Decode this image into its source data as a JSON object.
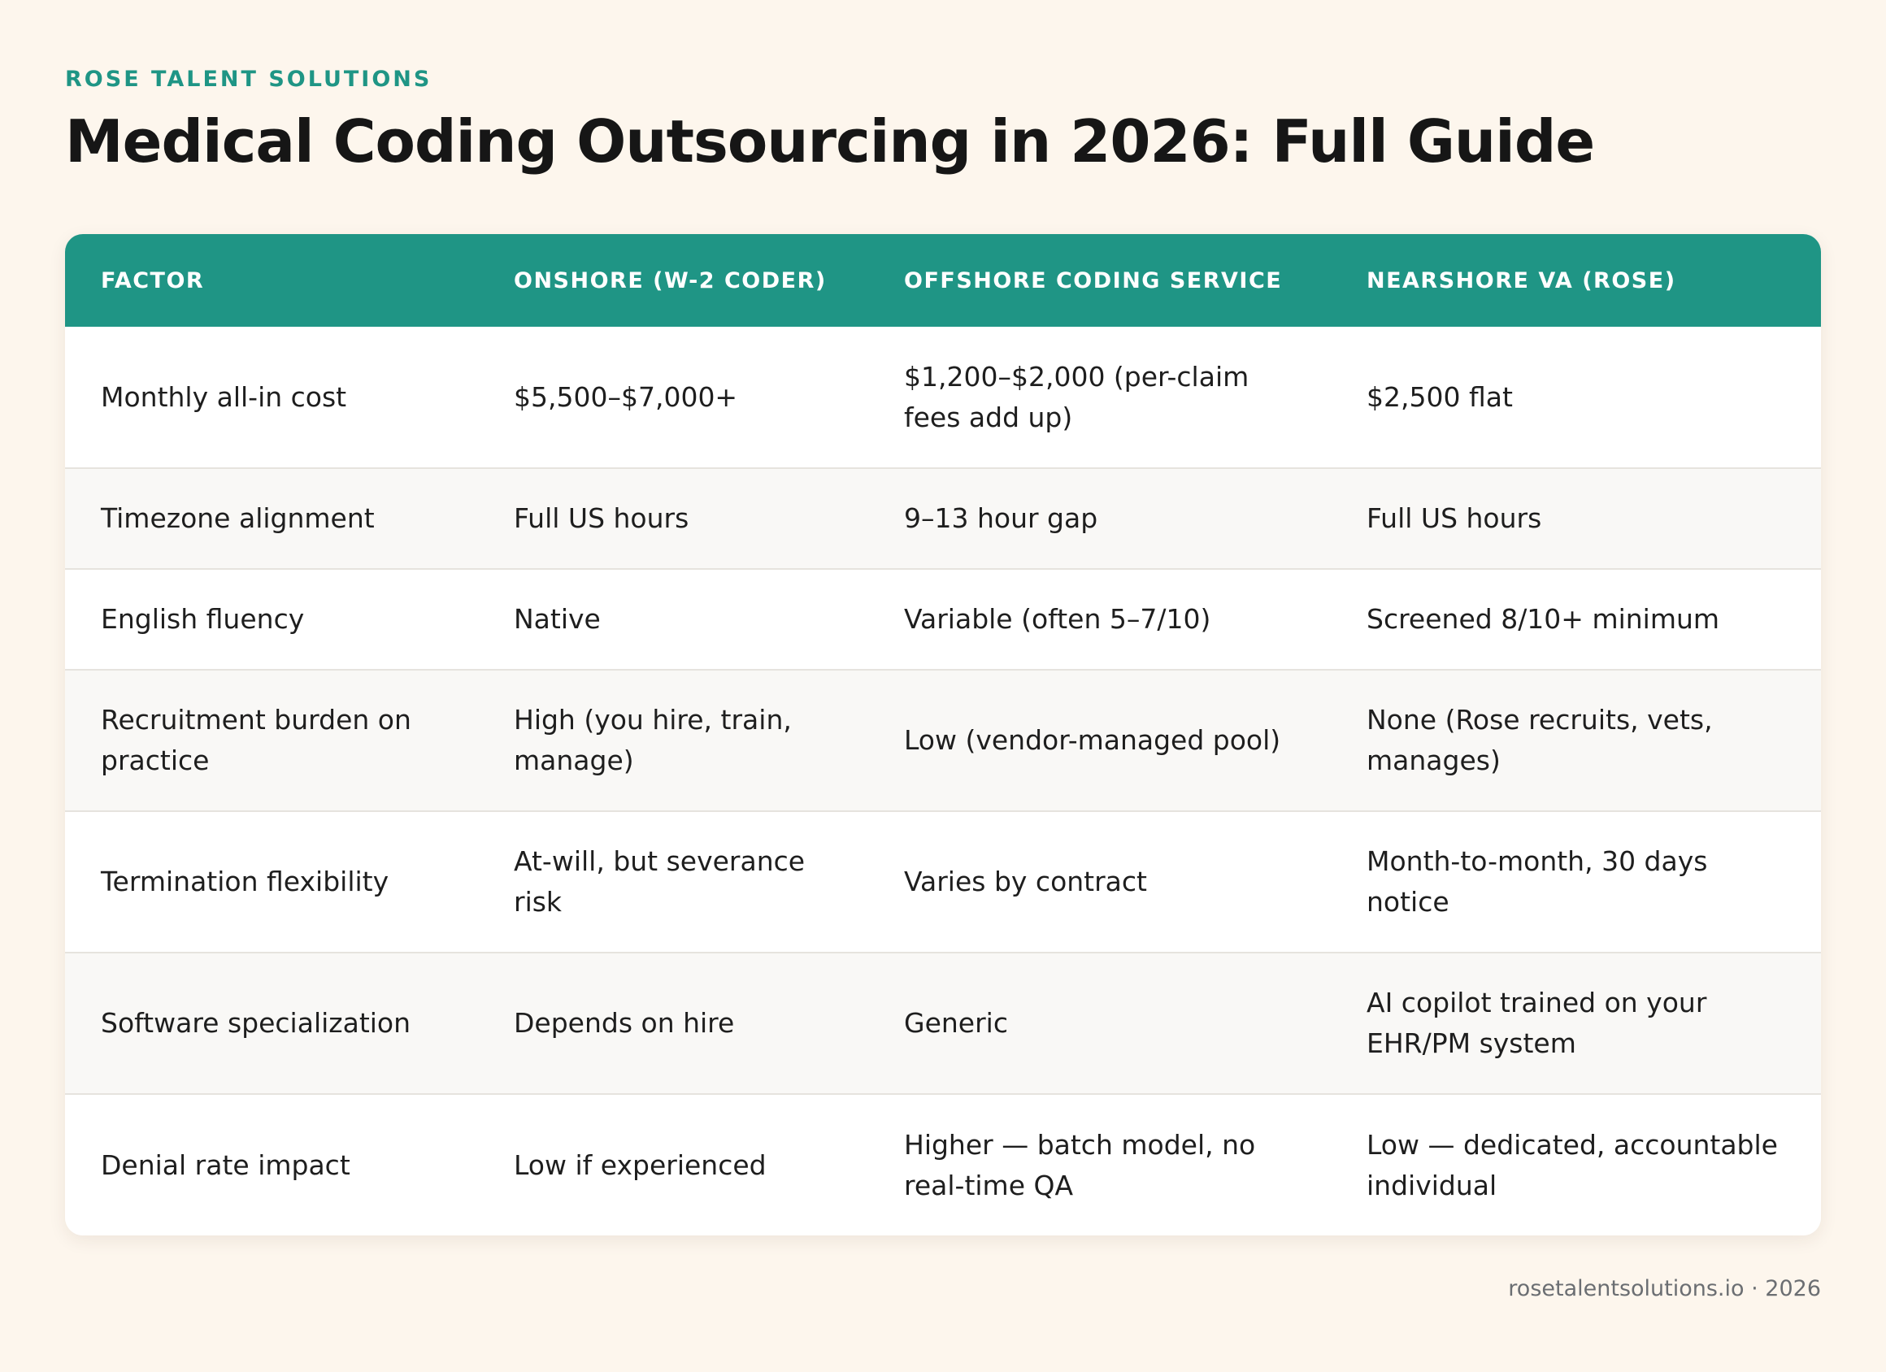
{
  "brand": "ROSE TALENT SOLUTIONS",
  "title": "Medical Coding Outsourcing in 2026: Full Guide",
  "table": {
    "headers": [
      "FACTOR",
      "ONSHORE (W-2 CODER)",
      "OFFSHORE CODING SERVICE",
      "NEARSHORE VA (ROSE)"
    ],
    "rows": [
      [
        "Monthly all-in cost",
        "$5,500–$7,000+",
        "$1,200–$2,000 (per-claim fees add up)",
        "$2,500 flat"
      ],
      [
        "Timezone alignment",
        "Full US hours",
        "9–13 hour gap",
        "Full US hours"
      ],
      [
        "English fluency",
        "Native",
        "Variable (often 5–7/10)",
        "Screened 8/10+ minimum"
      ],
      [
        "Recruitment burden on practice",
        "High (you hire, train, manage)",
        "Low (vendor-managed pool)",
        "None (Rose recruits, vets, manages)"
      ],
      [
        "Termination flexibility",
        "At-will, but severance risk",
        "Varies by contract",
        "Month-to-month, 30 days notice"
      ],
      [
        "Software specialization",
        "Depends on hire",
        "Generic",
        "AI copilot trained on your EHR/PM system"
      ],
      [
        "Denial rate impact",
        "Low if experienced",
        "Higher — batch model, no real-time QA",
        "Low — dedicated, accountable individual"
      ]
    ]
  },
  "footer": "rosetalentsolutions.io · 2026",
  "colors": {
    "accent": "#1f9585",
    "background": "#fdf6ed",
    "row_alt": "#f9f8f6"
  }
}
